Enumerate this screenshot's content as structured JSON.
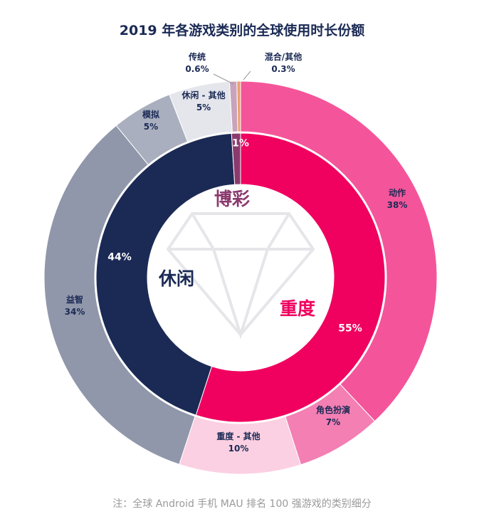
{
  "chart_data": {
    "type": "pie",
    "title": "2019 年各游戏类别的全球使用时长份额",
    "note": "注：全球 Android 手机 MAU 排名 100 强游戏的类别细分",
    "inner": [
      {
        "name": "重度",
        "value": 55,
        "label": "55%",
        "color": "#f0005f"
      },
      {
        "name": "休闲",
        "value": 44,
        "label": "44%",
        "color": "#1b2a55"
      },
      {
        "name": "博彩",
        "value": 1,
        "label": "1%",
        "color": "#8b3a6e"
      }
    ],
    "outer": [
      {
        "name": "动作",
        "value": 38,
        "label": "38%",
        "color": "#f4559a"
      },
      {
        "name": "角色扮演",
        "value": 7,
        "label": "7%",
        "color": "#f37fb3"
      },
      {
        "name": "重度 - 其他",
        "value": 10,
        "label": "10%",
        "color": "#fbd0e2"
      },
      {
        "name": "益智",
        "value": 34,
        "label": "34%",
        "color": "#9097aa"
      },
      {
        "name": "模拟",
        "value": 5,
        "label": "5%",
        "color": "#a9afbe"
      },
      {
        "name": "休闲 - 其他",
        "value": 5,
        "label": "5%",
        "color": "#e4e6ec"
      },
      {
        "name": "传统",
        "value": 0.6,
        "label": "0.6%",
        "color": "#c9a3bb"
      },
      {
        "name": "混合/其他",
        "value": 0.3,
        "label": "0.3%",
        "color": "#e9a06e"
      }
    ]
  }
}
